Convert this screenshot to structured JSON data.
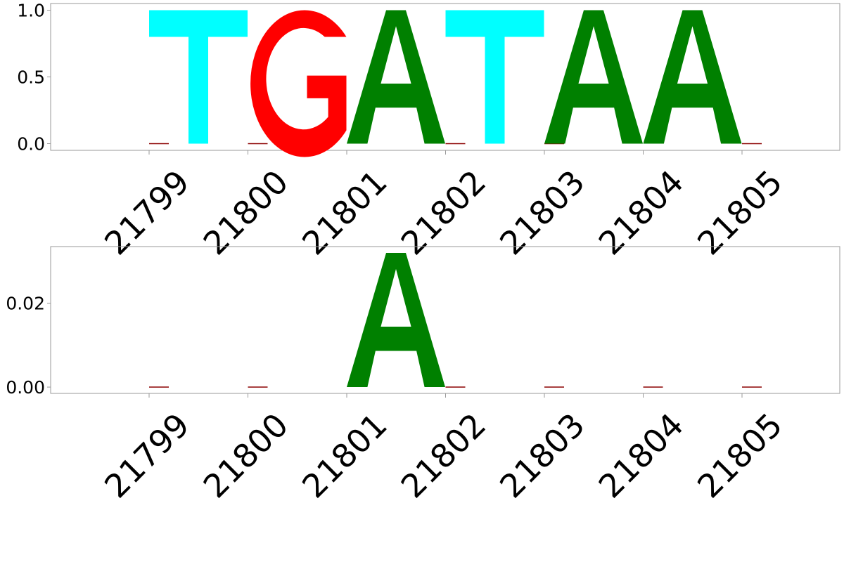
{
  "chart_data": [
    {
      "type": "bar",
      "subtype": "sequence-logo",
      "x": [
        21799,
        21800,
        21801,
        21802,
        21803,
        21804,
        21805
      ],
      "x_tick_labels": [
        "21799",
        "21800",
        "21801",
        "21802",
        "21803",
        "21804",
        "21805"
      ],
      "y_tick_labels": [
        "0.0",
        "0.5",
        "1.0"
      ],
      "y_ticks": [
        0.0,
        0.5,
        1.0
      ],
      "ylim": [
        -0.05,
        1.05
      ],
      "grid": false,
      "letters": [
        {
          "x": 21799,
          "letter": "T",
          "value": 1.0
        },
        {
          "x": 21800,
          "letter": "G",
          "value": 1.0
        },
        {
          "x": 21801,
          "letter": "A",
          "value": 1.0
        },
        {
          "x": 21802,
          "letter": "T",
          "value": 1.0
        },
        {
          "x": 21803,
          "letter": "A",
          "value": 1.0
        },
        {
          "x": 21804,
          "letter": "A",
          "value": 1.0
        }
      ],
      "baseline_marks": [
        21799,
        21800,
        21802,
        21803,
        21805
      ]
    },
    {
      "type": "bar",
      "subtype": "sequence-logo",
      "x": [
        21799,
        21800,
        21801,
        21802,
        21803,
        21804,
        21805
      ],
      "x_tick_labels": [
        "21799",
        "21800",
        "21801",
        "21802",
        "21803",
        "21804",
        "21805"
      ],
      "y_tick_labels": [
        "0.00",
        "0.02"
      ],
      "y_ticks": [
        0.0,
        0.02
      ],
      "ylim": [
        -0.0015,
        0.0335
      ],
      "grid": false,
      "letters": [
        {
          "x": 21801,
          "letter": "A",
          "value": 0.032
        }
      ],
      "baseline_marks": [
        21799,
        21800,
        21802,
        21803,
        21804,
        21805
      ]
    }
  ],
  "colors": {
    "A": "#008000",
    "C": "#0000ff",
    "G": "#ff0000",
    "T": "#00ffff",
    "baseline_mark": "#8b0000"
  }
}
